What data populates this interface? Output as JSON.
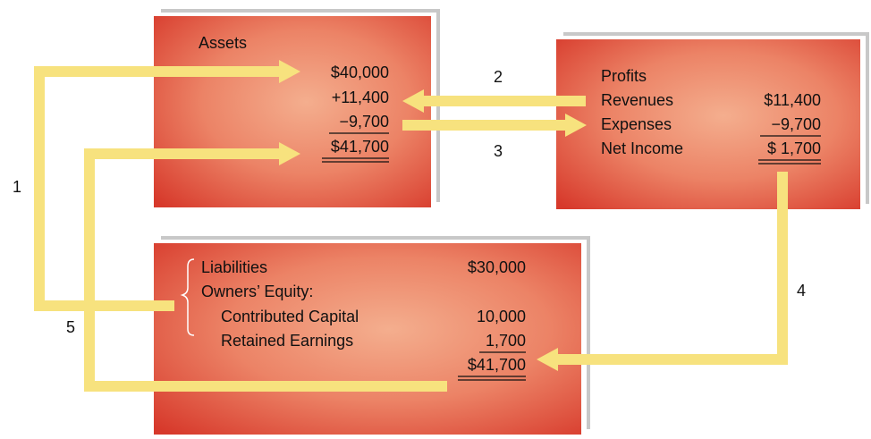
{
  "assets": {
    "title": "Assets",
    "amounts": [
      "$40,000",
      "+11,400",
      "−9,700",
      "$41,700"
    ]
  },
  "profits": {
    "title": "Profits",
    "rows": [
      {
        "label": "Revenues",
        "amount": "$11,400"
      },
      {
        "label": "Expenses",
        "amount": "−9,700"
      },
      {
        "label": "Net Income",
        "amount": "$ 1,700"
      }
    ]
  },
  "balance": {
    "rows": [
      {
        "label": "Liabilities",
        "amount": "$30,000"
      },
      {
        "label": "Owners’ Equity:"
      },
      {
        "label": "Contributed Capital",
        "amount": "10,000"
      },
      {
        "label": "Retained Earnings",
        "amount": "1,700"
      }
    ],
    "total": "$41,700"
  },
  "steps": [
    "1",
    "2",
    "3",
    "4",
    "5"
  ]
}
